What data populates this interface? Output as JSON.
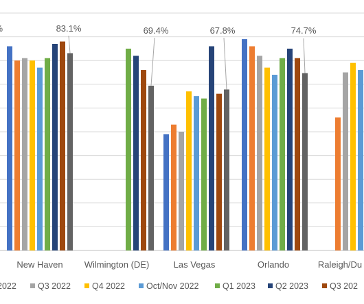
{
  "chart_data": {
    "type": "bar",
    "categories": [
      "New Haven",
      "Wilmington (DE)",
      "Las Vegas",
      "Orlando",
      "Raleigh/Du"
    ],
    "series": [
      {
        "name": "",
        "color": "#4472C4",
        "values": [
          86,
          null,
          49,
          89,
          null
        ]
      },
      {
        "name": "",
        "color": "#ED7D31",
        "values": [
          80,
          null,
          53,
          86,
          56
        ]
      },
      {
        "name": "Q3 2022",
        "color": "#A5A5A5",
        "values": [
          81,
          null,
          50,
          82,
          75
        ]
      },
      {
        "name": "Q4 2022",
        "color": "#FFC000",
        "values": [
          80,
          null,
          67,
          77,
          79
        ]
      },
      {
        "name": "Oct/Nov 2022",
        "color": "#5B9BD5",
        "values": [
          77,
          null,
          65,
          74,
          76
        ]
      },
      {
        "name": "Q1 2023",
        "color": "#70AD47",
        "values": [
          81,
          85,
          64,
          81,
          75
        ]
      },
      {
        "name": "Q2 2023",
        "color": "#264478",
        "values": [
          87,
          82,
          86,
          85,
          null
        ]
      },
      {
        "name": "Q3 202",
        "color": "#9E480E",
        "values": [
          88,
          76,
          66,
          81,
          null
        ]
      },
      {
        "name": "",
        "color": "#636363",
        "values": [
          83.1,
          69.4,
          67.8,
          74.7,
          null
        ]
      }
    ],
    "data_labels": [
      "83.1%",
      "69.4%",
      "67.8%",
      "74.7%"
    ],
    "top_left_label": "%",
    "legend_position": "bottom",
    "grid": true,
    "ylim": [
      0,
      100
    ]
  }
}
